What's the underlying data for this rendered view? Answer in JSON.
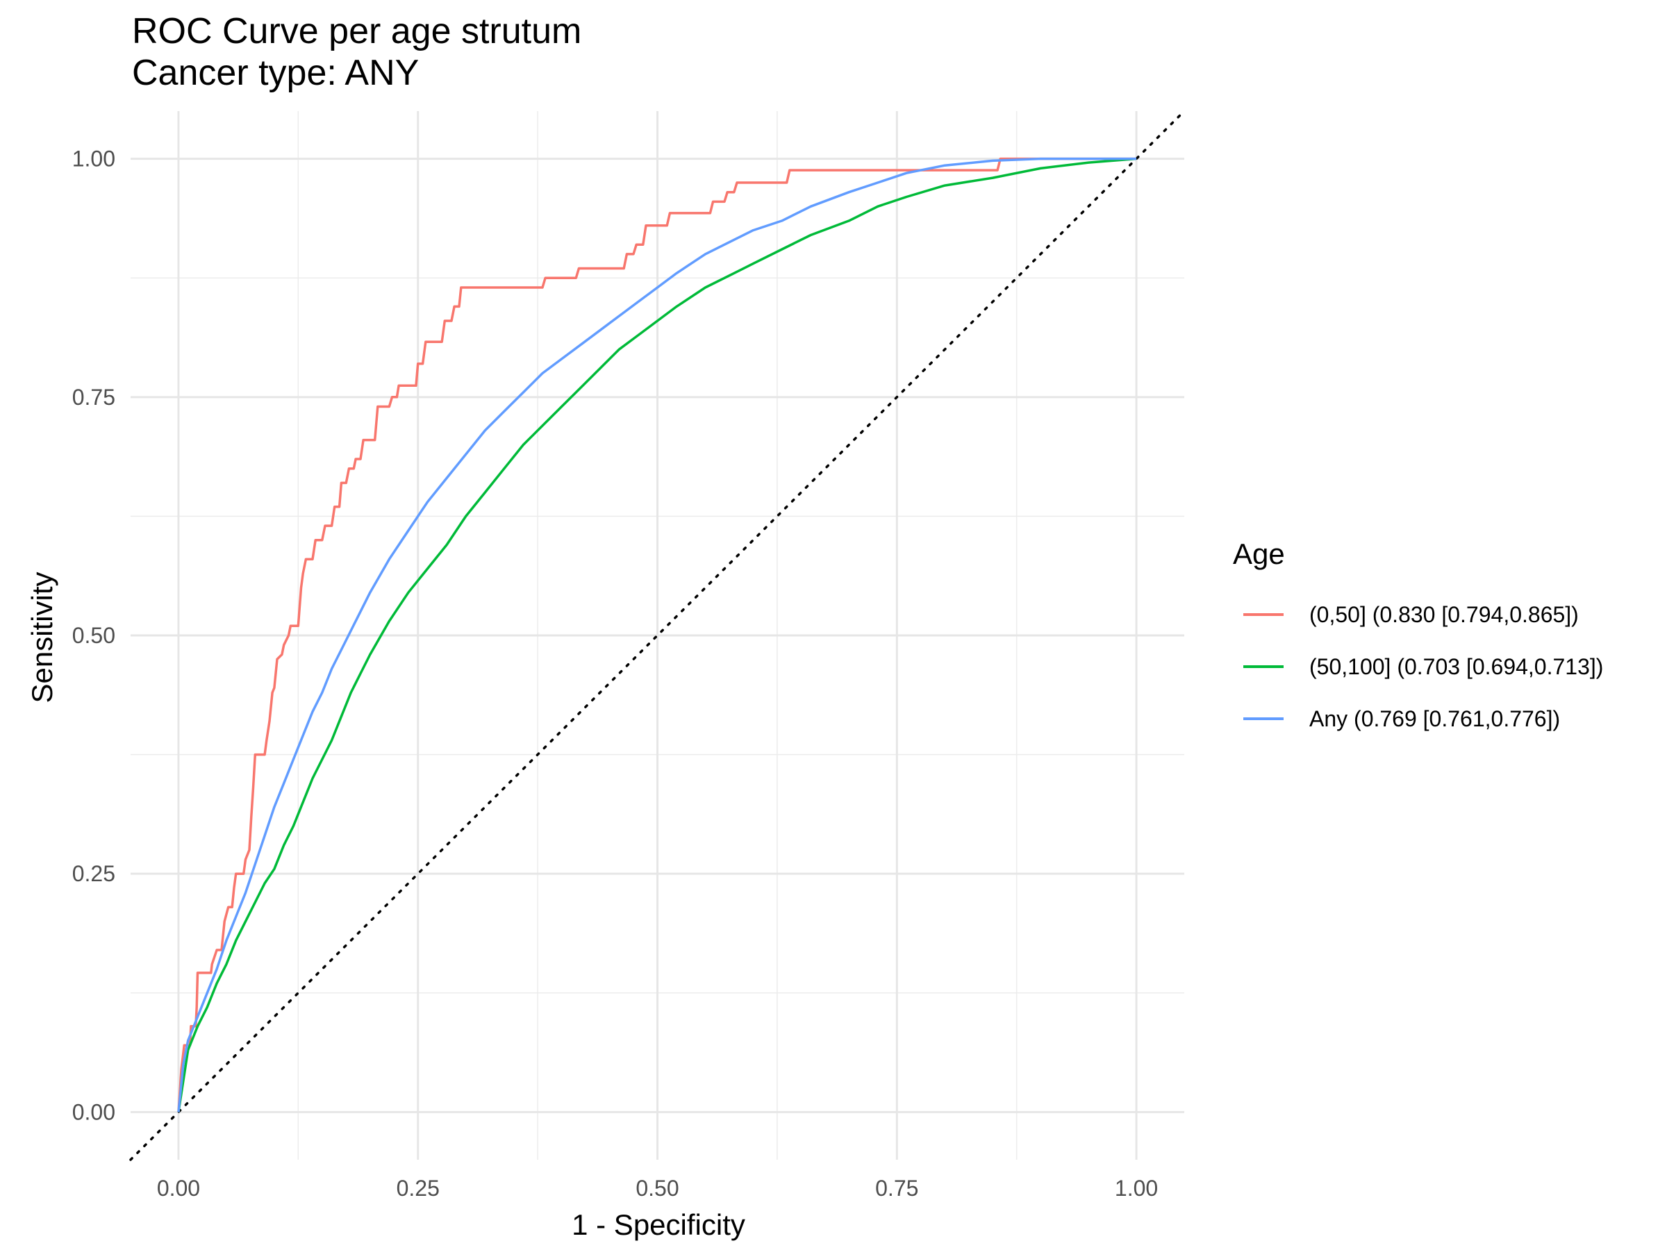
{
  "chart_data": {
    "type": "line",
    "title": "ROC Curve per age strutum",
    "subtitle": "Cancer type: ANY",
    "xlabel": "1 - Specificity",
    "ylabel": "Sensitivity",
    "xlim": [
      -0.05,
      1.05
    ],
    "ylim": [
      -0.05,
      1.05
    ],
    "x_ticks": [
      "0.00",
      "0.25",
      "0.50",
      "0.75",
      "1.00"
    ],
    "y_ticks": [
      "0.00",
      "0.25",
      "0.50",
      "0.75",
      "1.00"
    ],
    "grid": true,
    "legend": {
      "title": "Age",
      "placement": "right"
    },
    "reference_line": {
      "style": "dotted",
      "color": "#000000",
      "from": [
        -0.05,
        -0.05
      ],
      "to": [
        1.05,
        1.05
      ]
    },
    "series": [
      {
        "name": "(0,50] (0.830 [0.794,0.865])",
        "color": "#F8766D",
        "points": [
          [
            0,
            0
          ],
          [
            0.003,
            0.045
          ],
          [
            0.006,
            0.07
          ],
          [
            0.012,
            0.07
          ],
          [
            0.013,
            0.09
          ],
          [
            0.018,
            0.09
          ],
          [
            0.019,
            0.11
          ],
          [
            0.02,
            0.146
          ],
          [
            0.034,
            0.146
          ],
          [
            0.035,
            0.155
          ],
          [
            0.04,
            0.17
          ],
          [
            0.045,
            0.17
          ],
          [
            0.048,
            0.2
          ],
          [
            0.052,
            0.215
          ],
          [
            0.056,
            0.215
          ],
          [
            0.058,
            0.235
          ],
          [
            0.06,
            0.25
          ],
          [
            0.068,
            0.25
          ],
          [
            0.07,
            0.265
          ],
          [
            0.074,
            0.275
          ],
          [
            0.076,
            0.31
          ],
          [
            0.078,
            0.34
          ],
          [
            0.08,
            0.375
          ],
          [
            0.09,
            0.375
          ],
          [
            0.092,
            0.39
          ],
          [
            0.095,
            0.41
          ],
          [
            0.098,
            0.44
          ],
          [
            0.1,
            0.445
          ],
          [
            0.103,
            0.475
          ],
          [
            0.108,
            0.48
          ],
          [
            0.11,
            0.49
          ],
          [
            0.115,
            0.5
          ],
          [
            0.117,
            0.51
          ],
          [
            0.125,
            0.51
          ],
          [
            0.128,
            0.55
          ],
          [
            0.13,
            0.565
          ],
          [
            0.133,
            0.58
          ],
          [
            0.14,
            0.58
          ],
          [
            0.143,
            0.6
          ],
          [
            0.15,
            0.6
          ],
          [
            0.153,
            0.615
          ],
          [
            0.16,
            0.615
          ],
          [
            0.163,
            0.635
          ],
          [
            0.168,
            0.635
          ],
          [
            0.17,
            0.66
          ],
          [
            0.175,
            0.66
          ],
          [
            0.178,
            0.675
          ],
          [
            0.183,
            0.675
          ],
          [
            0.185,
            0.685
          ],
          [
            0.19,
            0.685
          ],
          [
            0.193,
            0.705
          ],
          [
            0.205,
            0.705
          ],
          [
            0.208,
            0.74
          ],
          [
            0.22,
            0.74
          ],
          [
            0.223,
            0.75
          ],
          [
            0.228,
            0.75
          ],
          [
            0.23,
            0.762
          ],
          [
            0.248,
            0.762
          ],
          [
            0.25,
            0.785
          ],
          [
            0.255,
            0.785
          ],
          [
            0.258,
            0.808
          ],
          [
            0.275,
            0.808
          ],
          [
            0.278,
            0.83
          ],
          [
            0.285,
            0.83
          ],
          [
            0.288,
            0.845
          ],
          [
            0.293,
            0.845
          ],
          [
            0.295,
            0.865
          ],
          [
            0.38,
            0.865
          ],
          [
            0.383,
            0.875
          ],
          [
            0.415,
            0.875
          ],
          [
            0.418,
            0.885
          ],
          [
            0.465,
            0.885
          ],
          [
            0.468,
            0.9
          ],
          [
            0.475,
            0.9
          ],
          [
            0.478,
            0.91
          ],
          [
            0.485,
            0.91
          ],
          [
            0.488,
            0.93
          ],
          [
            0.51,
            0.93
          ],
          [
            0.513,
            0.943
          ],
          [
            0.555,
            0.943
          ],
          [
            0.558,
            0.955
          ],
          [
            0.57,
            0.955
          ],
          [
            0.573,
            0.965
          ],
          [
            0.58,
            0.965
          ],
          [
            0.583,
            0.975
          ],
          [
            0.635,
            0.975
          ],
          [
            0.638,
            0.988
          ],
          [
            0.855,
            0.988
          ],
          [
            0.858,
            1.0
          ],
          [
            1.0,
            1.0
          ]
        ]
      },
      {
        "name": "(50,100] (0.703 [0.694,0.713])",
        "color": "#00BA38",
        "points": [
          [
            0,
            0
          ],
          [
            0.01,
            0.065
          ],
          [
            0.02,
            0.09
          ],
          [
            0.03,
            0.11
          ],
          [
            0.04,
            0.135
          ],
          [
            0.05,
            0.155
          ],
          [
            0.06,
            0.18
          ],
          [
            0.07,
            0.2
          ],
          [
            0.08,
            0.22
          ],
          [
            0.09,
            0.24
          ],
          [
            0.1,
            0.255
          ],
          [
            0.11,
            0.28
          ],
          [
            0.12,
            0.3
          ],
          [
            0.13,
            0.325
          ],
          [
            0.14,
            0.35
          ],
          [
            0.15,
            0.37
          ],
          [
            0.16,
            0.39
          ],
          [
            0.17,
            0.415
          ],
          [
            0.18,
            0.44
          ],
          [
            0.19,
            0.46
          ],
          [
            0.2,
            0.48
          ],
          [
            0.22,
            0.515
          ],
          [
            0.24,
            0.545
          ],
          [
            0.26,
            0.57
          ],
          [
            0.28,
            0.595
          ],
          [
            0.3,
            0.625
          ],
          [
            0.32,
            0.65
          ],
          [
            0.34,
            0.675
          ],
          [
            0.36,
            0.7
          ],
          [
            0.38,
            0.72
          ],
          [
            0.4,
            0.74
          ],
          [
            0.42,
            0.76
          ],
          [
            0.44,
            0.78
          ],
          [
            0.46,
            0.8
          ],
          [
            0.48,
            0.815
          ],
          [
            0.5,
            0.83
          ],
          [
            0.52,
            0.845
          ],
          [
            0.55,
            0.865
          ],
          [
            0.58,
            0.88
          ],
          [
            0.6,
            0.89
          ],
          [
            0.63,
            0.905
          ],
          [
            0.66,
            0.92
          ],
          [
            0.7,
            0.935
          ],
          [
            0.73,
            0.95
          ],
          [
            0.76,
            0.96
          ],
          [
            0.8,
            0.972
          ],
          [
            0.85,
            0.98
          ],
          [
            0.9,
            0.99
          ],
          [
            0.95,
            0.996
          ],
          [
            1.0,
            1.0
          ]
        ]
      },
      {
        "name": "Any (0.769 [0.761,0.776])",
        "color": "#619CFF",
        "points": [
          [
            0,
            0
          ],
          [
            0.005,
            0.05
          ],
          [
            0.01,
            0.075
          ],
          [
            0.02,
            0.1
          ],
          [
            0.03,
            0.125
          ],
          [
            0.04,
            0.15
          ],
          [
            0.05,
            0.18
          ],
          [
            0.06,
            0.205
          ],
          [
            0.07,
            0.23
          ],
          [
            0.08,
            0.26
          ],
          [
            0.09,
            0.29
          ],
          [
            0.1,
            0.32
          ],
          [
            0.11,
            0.345
          ],
          [
            0.12,
            0.37
          ],
          [
            0.13,
            0.395
          ],
          [
            0.14,
            0.42
          ],
          [
            0.15,
            0.44
          ],
          [
            0.16,
            0.465
          ],
          [
            0.17,
            0.485
          ],
          [
            0.18,
            0.505
          ],
          [
            0.19,
            0.525
          ],
          [
            0.2,
            0.545
          ],
          [
            0.22,
            0.58
          ],
          [
            0.24,
            0.61
          ],
          [
            0.26,
            0.64
          ],
          [
            0.28,
            0.665
          ],
          [
            0.3,
            0.69
          ],
          [
            0.32,
            0.715
          ],
          [
            0.34,
            0.735
          ],
          [
            0.36,
            0.755
          ],
          [
            0.38,
            0.775
          ],
          [
            0.4,
            0.79
          ],
          [
            0.42,
            0.805
          ],
          [
            0.44,
            0.82
          ],
          [
            0.46,
            0.835
          ],
          [
            0.48,
            0.85
          ],
          [
            0.5,
            0.865
          ],
          [
            0.52,
            0.88
          ],
          [
            0.55,
            0.9
          ],
          [
            0.58,
            0.915
          ],
          [
            0.6,
            0.925
          ],
          [
            0.63,
            0.935
          ],
          [
            0.66,
            0.95
          ],
          [
            0.7,
            0.965
          ],
          [
            0.73,
            0.975
          ],
          [
            0.76,
            0.985
          ],
          [
            0.8,
            0.993
          ],
          [
            0.85,
            0.998
          ],
          [
            0.9,
            1.0
          ],
          [
            1.0,
            1.0
          ]
        ]
      }
    ]
  }
}
